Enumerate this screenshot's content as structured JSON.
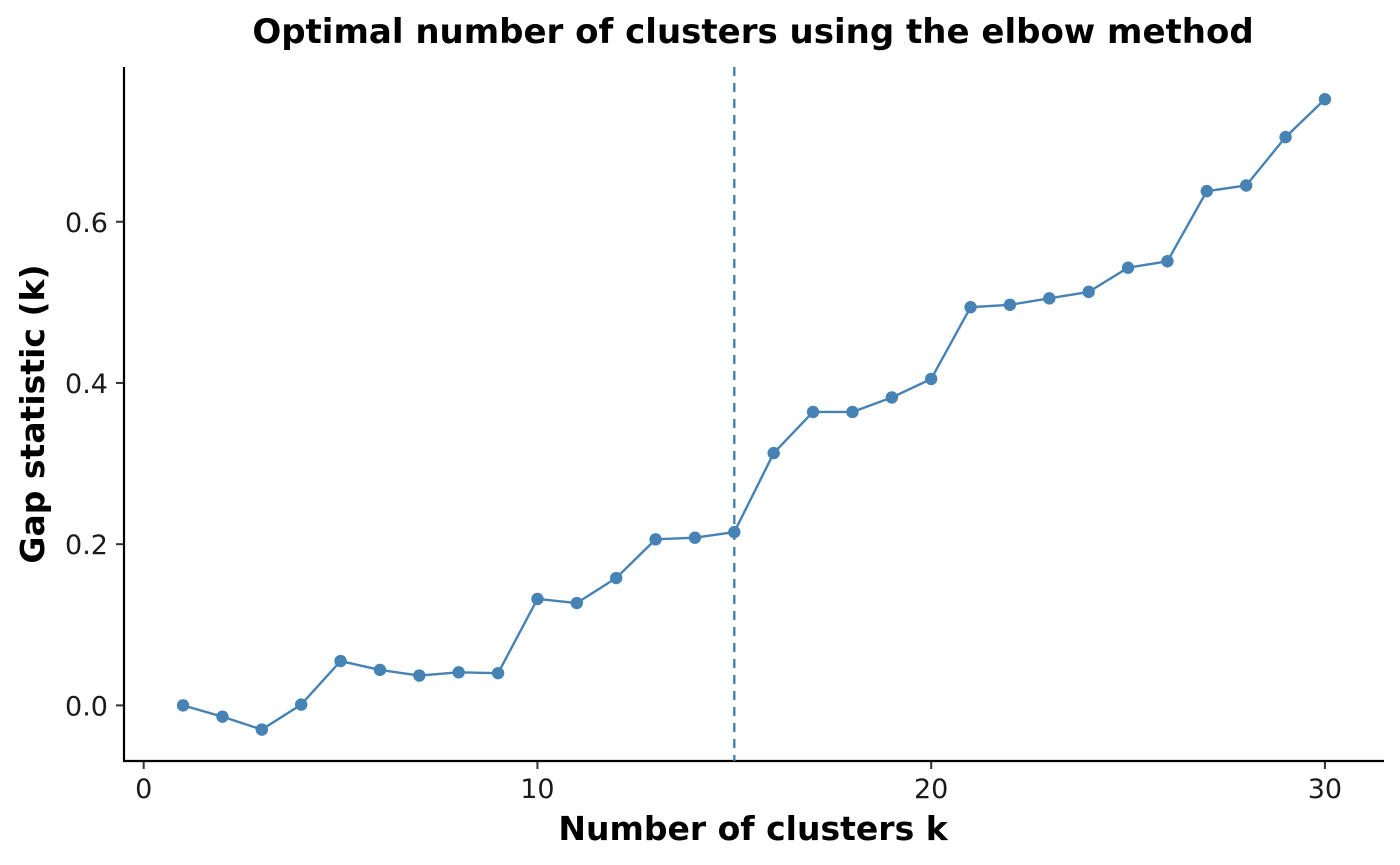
{
  "chart_data": {
    "type": "line",
    "title": "Optimal number of clusters using the elbow method",
    "xlabel": "Number of clusters k",
    "ylabel": "Gap statistic (k)",
    "x": [
      1,
      2,
      3,
      4,
      5,
      6,
      7,
      8,
      9,
      10,
      11,
      12,
      13,
      14,
      15,
      16,
      17,
      18,
      19,
      20,
      21,
      22,
      23,
      24,
      25,
      26,
      27,
      28,
      29,
      30
    ],
    "series": [
      {
        "values": [
          0.0,
          -0.014,
          -0.03,
          0.001,
          0.055,
          0.044,
          0.037,
          0.041,
          0.04,
          0.132,
          0.127,
          0.158,
          0.206,
          0.208,
          0.215,
          0.313,
          0.364,
          0.364,
          0.382,
          0.405,
          0.494,
          0.497,
          0.505,
          0.513,
          0.543,
          0.551,
          0.638,
          0.645,
          0.705,
          0.752
        ],
        "color": "#4682B4"
      }
    ],
    "reference_line": {
      "x": 15,
      "style": "dashed",
      "color": "#4682B4"
    },
    "xlim": [
      -0.5,
      31.5
    ],
    "ylim": [
      -0.069,
      0.792
    ],
    "xticks": [
      0,
      10,
      20,
      30
    ],
    "xtick_labels": [
      "0",
      "10",
      "20",
      "30"
    ],
    "yticks": [
      0.0,
      0.2,
      0.4,
      0.6
    ],
    "ytick_labels": [
      "0.0",
      "0.2",
      "0.4",
      "0.6"
    ],
    "grid": false,
    "legend": "none"
  }
}
